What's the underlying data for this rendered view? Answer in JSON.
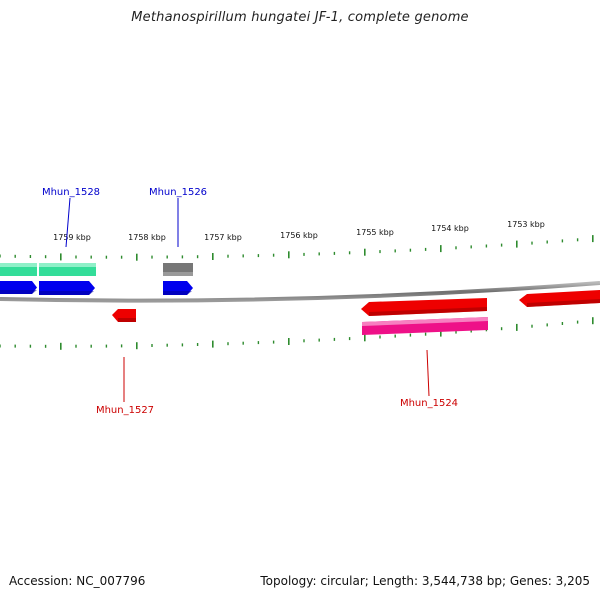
{
  "title": "Methanospirillum hungatei JF-1, complete genome",
  "footer": {
    "accession": "Accession: NC_007796",
    "stats": "Topology: circular; Length: 3,544,738 bp; Genes: 3,205"
  },
  "colors": {
    "backbone": "#7f7f7f",
    "ticks": "#2e8b2e",
    "cds_forward": "#0000ee",
    "cds_reverse": "#ee0000",
    "gene_forward": "#33dd99",
    "gene_reverse": "#ee1188",
    "pseudo": "#777777",
    "label_forward": "#0000cc",
    "label_reverse": "#cc0000"
  },
  "scale": {
    "unit": "kbp",
    "major_ticks": [
      {
        "kbp": 1759,
        "label": "1759 kbp"
      },
      {
        "kbp": 1758,
        "label": "1758 kbp"
      },
      {
        "kbp": 1757,
        "label": "1757 kbp"
      },
      {
        "kbp": 1756,
        "label": "1756 kbp"
      },
      {
        "kbp": 1755,
        "label": "1755 kbp"
      },
      {
        "kbp": 1754,
        "label": "1754 kbp"
      },
      {
        "kbp": 1753,
        "label": "1753 kbp"
      }
    ]
  },
  "gene_labels": [
    {
      "text": "Mhun_1528",
      "strand": "forward"
    },
    {
      "text": "Mhun_1526",
      "strand": "forward"
    },
    {
      "text": "Mhun_1527",
      "strand": "reverse"
    },
    {
      "text": "Mhun_1524",
      "strand": "reverse"
    }
  ]
}
